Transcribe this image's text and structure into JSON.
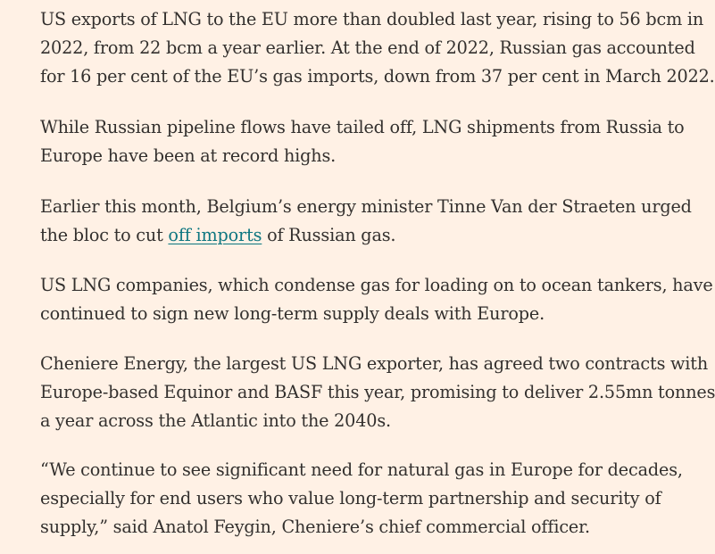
{
  "article": {
    "paragraphs": [
      {
        "lines": [
          "US exports of LNG to the EU more than doubled last year, rising to 56 bcm in",
          "2022, from 22 bcm a year earlier. At the end of 2022, Russian gas accounted",
          "for 16 per cent of the EU’s gas imports, down from 37 per cent in March 2022."
        ]
      },
      {
        "lines": [
          "While Russian pipeline flows have tailed off, LNG shipments from Russia to",
          "Europe have been at record highs."
        ]
      },
      {
        "line1": "Earlier this month, Belgium’s energy minister Tinne Van der Straeten urged",
        "line2_before": "the bloc to cut ",
        "link_text": "off imports",
        "line2_after": " of Russian gas."
      },
      {
        "lines": [
          "US LNG companies, which condense gas for loading on to ocean tankers, have",
          "continued to sign new long-term supply deals with Europe."
        ]
      },
      {
        "lines": [
          "Cheniere Energy, the largest US LNG exporter, has agreed two contracts with",
          "Europe-based Equinor and BASF this year, promising to deliver 2.55mn tonnes",
          "a year across the Atlantic into the 2040s."
        ]
      },
      {
        "lines": [
          "“We continue to see significant need for natural gas in Europe for decades,",
          "especially for end users who value long-term partnership and security of",
          "supply,” said Anatol Feygin, Cheniere’s chief commercial officer."
        ]
      }
    ]
  },
  "colors": {
    "background": "#fff1e5",
    "text": "#33302e",
    "link": "#0d7680"
  }
}
